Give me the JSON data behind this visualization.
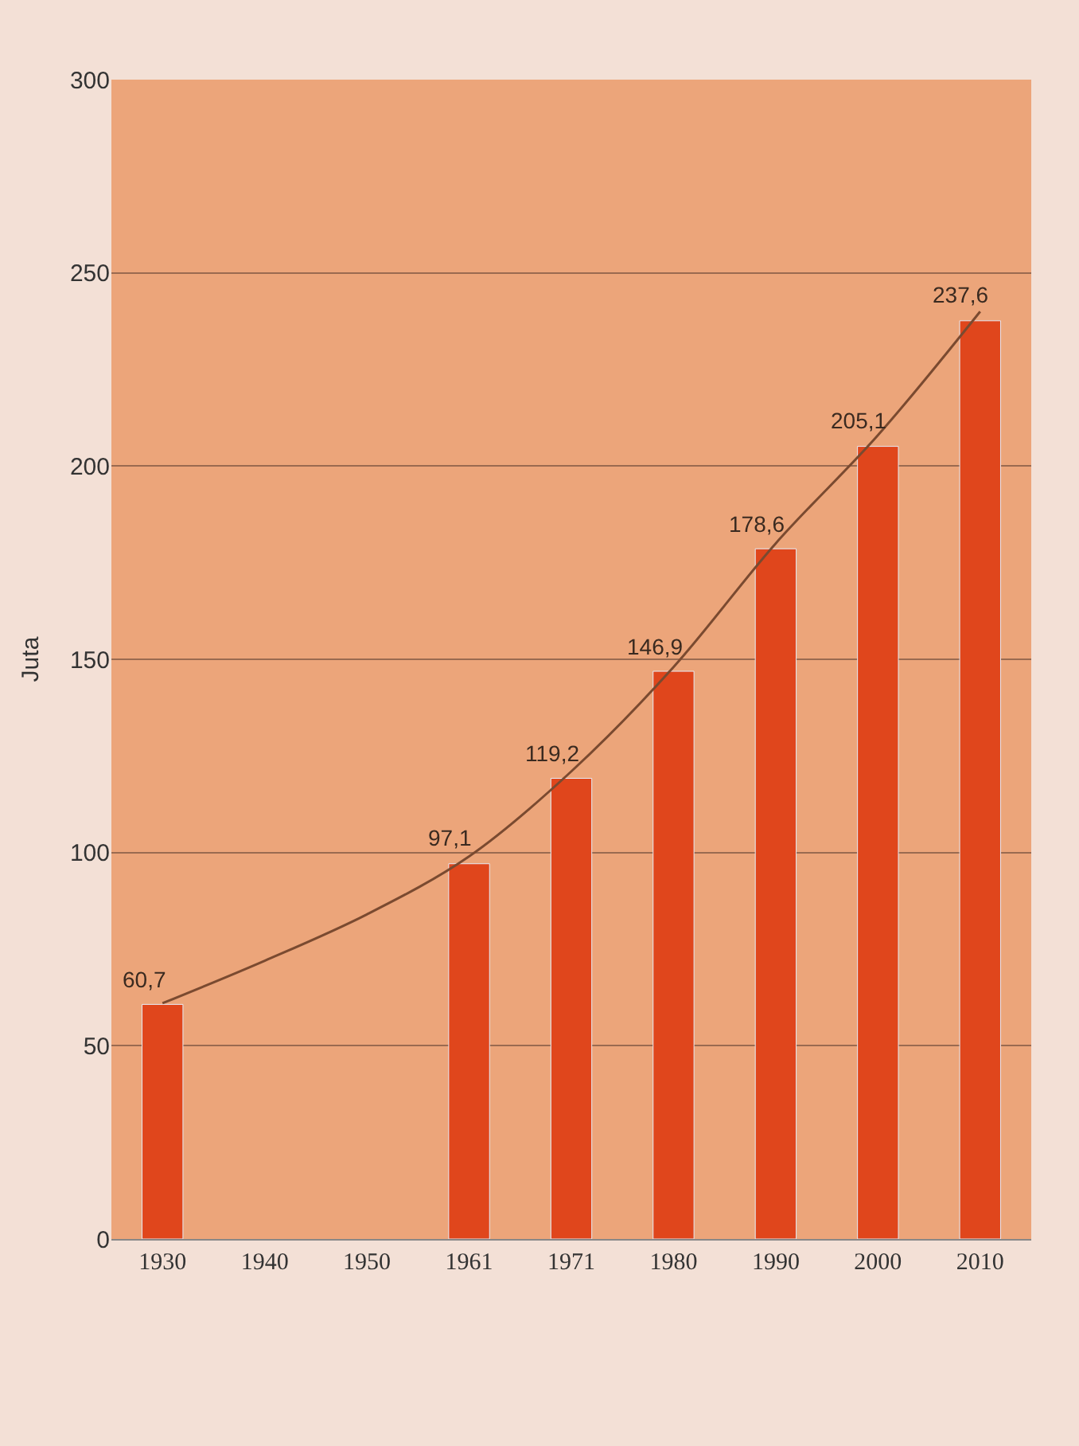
{
  "chart_data": {
    "type": "bar",
    "ylabel": "Juta",
    "categories": [
      "1930",
      "1940",
      "1950",
      "1961",
      "1971",
      "1980",
      "1990",
      "2000",
      "2010"
    ],
    "series": [
      {
        "color": "#e0461c",
        "values": [
          60.7,
          null,
          null,
          97.1,
          119.2,
          146.9,
          178.6,
          205.1,
          237.6
        ],
        "value_labels": [
          "60,7",
          null,
          null,
          "97,1",
          "119,2",
          "146,9",
          "178,6",
          "205,1",
          "237,6"
        ]
      },
      {
        "type": "line",
        "color": "#7a4a30",
        "values": [
          61,
          72,
          84,
          99,
          121,
          148,
          180,
          208,
          240
        ],
        "line_style": "solid",
        "marker": "none"
      }
    ],
    "ylim": [
      0,
      300
    ],
    "yticks": [
      0,
      50,
      100,
      150,
      200,
      250,
      300
    ],
    "grid": "y"
  }
}
